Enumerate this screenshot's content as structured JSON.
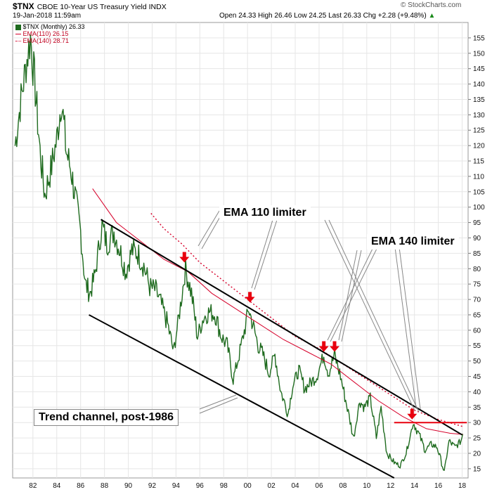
{
  "header": {
    "symbol": "$TNX",
    "description": "CBOE 10-Year US Treasury Yield INDX",
    "datetime": "19-Jan-2018 11:59am",
    "quote": "Open 24.33   High 26.46   Low 24.25   Last 26.33   Chg +2.28 (+9.48%)",
    "quote_arrow": "▲",
    "watermark": "© StockCharts.com"
  },
  "legend": {
    "price": "$TNX (Monthly) 26.33",
    "ema110": "EMA(110) 26.15",
    "ema140": "EMA(140) 28.71"
  },
  "annotations": {
    "ema110_limiter": "EMA 110 limiter",
    "ema140_limiter": "EMA 140 limiter",
    "trend_channel": "Trend channel, post-1986"
  },
  "colors": {
    "price": "#1f6b1f",
    "ema110": "#d6002a",
    "ema140": "#d6002a",
    "arrow": "#e8000e",
    "trendline": "#000000",
    "resistance": "#e8000e"
  },
  "chart_data": {
    "type": "line",
    "x_ticks": [
      {
        "year": 1982,
        "label": "82"
      },
      {
        "year": 1984,
        "label": "84"
      },
      {
        "year": 1986,
        "label": "86"
      },
      {
        "year": 1988,
        "label": "88"
      },
      {
        "year": 1990,
        "label": "90"
      },
      {
        "year": 1992,
        "label": "92"
      },
      {
        "year": 1994,
        "label": "94"
      },
      {
        "year": 1996,
        "label": "96"
      },
      {
        "year": 1998,
        "label": "98"
      },
      {
        "year": 2000,
        "label": "00"
      },
      {
        "year": 2002,
        "label": "02"
      },
      {
        "year": 2004,
        "label": "04"
      },
      {
        "year": 2006,
        "label": "06"
      },
      {
        "year": 2008,
        "label": "08"
      },
      {
        "year": 2010,
        "label": "10"
      },
      {
        "year": 2012,
        "label": "12"
      },
      {
        "year": 2014,
        "label": "14"
      },
      {
        "year": 2016,
        "label": "16"
      },
      {
        "year": 2018,
        "label": "18"
      }
    ],
    "y_ticks": [
      15,
      20,
      25,
      30,
      35,
      40,
      45,
      50,
      55,
      60,
      65,
      70,
      75,
      80,
      85,
      90,
      95,
      100,
      105,
      110,
      115,
      120,
      125,
      130,
      135,
      140,
      145,
      150,
      155
    ],
    "xlim": [
      1980.3,
      2018.5
    ],
    "ylim": [
      12,
      160
    ],
    "grid": true,
    "series": [
      {
        "name": "$TNX (Monthly) 26.33",
        "points": [
          [
            1980.5,
            120
          ],
          [
            1981.0,
            135
          ],
          [
            1981.5,
            148
          ],
          [
            1981.8,
            155
          ],
          [
            1982.2,
            138
          ],
          [
            1982.6,
            118
          ],
          [
            1983.0,
            104
          ],
          [
            1983.5,
            112
          ],
          [
            1984.0,
            122
          ],
          [
            1984.4,
            135
          ],
          [
            1984.8,
            118
          ],
          [
            1985.2,
            112
          ],
          [
            1985.6,
            102
          ],
          [
            1986.0,
            92
          ],
          [
            1986.4,
            75
          ],
          [
            1986.8,
            72
          ],
          [
            1987.2,
            78
          ],
          [
            1987.8,
            94
          ],
          [
            1988.2,
            88
          ],
          [
            1988.8,
            92
          ],
          [
            1989.3,
            86
          ],
          [
            1989.8,
            79
          ],
          [
            1990.3,
            86
          ],
          [
            1990.8,
            85
          ],
          [
            1991.3,
            81
          ],
          [
            1991.8,
            74
          ],
          [
            1992.3,
            73
          ],
          [
            1992.8,
            68
          ],
          [
            1993.3,
            62
          ],
          [
            1993.8,
            53
          ],
          [
            1994.3,
            66
          ],
          [
            1994.8,
            80
          ],
          [
            1995.3,
            72
          ],
          [
            1995.8,
            58
          ],
          [
            1996.3,
            64
          ],
          [
            1996.8,
            66
          ],
          [
            1997.3,
            65
          ],
          [
            1997.8,
            58
          ],
          [
            1998.3,
            55
          ],
          [
            1998.8,
            44
          ],
          [
            1999.3,
            52
          ],
          [
            1999.8,
            61
          ],
          [
            2000.1,
            67
          ],
          [
            2000.5,
            61
          ],
          [
            2000.9,
            55
          ],
          [
            2001.3,
            52
          ],
          [
            2001.8,
            46
          ],
          [
            2002.3,
            52
          ],
          [
            2002.8,
            40
          ],
          [
            2003.4,
            33
          ],
          [
            2003.8,
            42
          ],
          [
            2004.3,
            47
          ],
          [
            2004.8,
            41
          ],
          [
            2005.3,
            43
          ],
          [
            2005.8,
            45
          ],
          [
            2006.4,
            52
          ],
          [
            2006.8,
            46
          ],
          [
            2007.3,
            52
          ],
          [
            2007.8,
            45
          ],
          [
            2008.3,
            36
          ],
          [
            2008.9,
            25
          ],
          [
            2009.4,
            37
          ],
          [
            2009.8,
            35
          ],
          [
            2010.3,
            38
          ],
          [
            2010.8,
            25
          ],
          [
            2011.2,
            35
          ],
          [
            2011.7,
            20
          ],
          [
            2012.3,
            17
          ],
          [
            2012.8,
            16
          ],
          [
            2013.3,
            20
          ],
          [
            2013.9,
            30
          ],
          [
            2014.4,
            26
          ],
          [
            2014.9,
            21
          ],
          [
            2015.4,
            23
          ],
          [
            2015.9,
            22
          ],
          [
            2016.5,
            14
          ],
          [
            2016.9,
            24
          ],
          [
            2017.4,
            22
          ],
          [
            2017.9,
            24
          ],
          [
            2018.05,
            26.33
          ]
        ]
      },
      {
        "name": "EMA(110) 26.15",
        "points": [
          [
            1987.0,
            106
          ],
          [
            1989.0,
            95
          ],
          [
            1991.0,
            89
          ],
          [
            1993.0,
            83
          ],
          [
            1995.0,
            79
          ],
          [
            1997.0,
            72
          ],
          [
            1999.0,
            67
          ],
          [
            2001.0,
            62
          ],
          [
            2003.0,
            57
          ],
          [
            2005.0,
            53
          ],
          [
            2007.0,
            49
          ],
          [
            2009.0,
            43
          ],
          [
            2011.0,
            37
          ],
          [
            2013.0,
            32
          ],
          [
            2015.0,
            28
          ],
          [
            2017.0,
            26.5
          ],
          [
            2018.05,
            26.15
          ]
        ]
      },
      {
        "name": "EMA(140) 28.71",
        "points": [
          [
            1991.9,
            98
          ],
          [
            1993.0,
            93
          ],
          [
            1994.5,
            88
          ],
          [
            1996.0,
            82
          ],
          [
            1998.0,
            76
          ],
          [
            2000.0,
            70
          ],
          [
            2002.0,
            64
          ],
          [
            2004.0,
            58
          ],
          [
            2006.0,
            54
          ],
          [
            2008.0,
            49
          ],
          [
            2010.0,
            44
          ],
          [
            2012.0,
            39
          ],
          [
            2014.0,
            34
          ],
          [
            2016.0,
            31
          ],
          [
            2018.05,
            28.71
          ]
        ]
      }
    ],
    "trend_channel": {
      "upper": [
        [
          1987.7,
          96
        ],
        [
          2018.0,
          26
        ]
      ],
      "lower": [
        [
          1986.7,
          65
        ],
        [
          2012.3,
          12
        ]
      ]
    },
    "resistance_line": {
      "y": 30,
      "x": [
        2012.3,
        2018.4
      ]
    },
    "limiter_arrows": [
      {
        "x": 1994.7,
        "y": 82
      },
      {
        "x": 2000.2,
        "y": 69
      },
      {
        "x": 2006.4,
        "y": 53
      },
      {
        "x": 2007.3,
        "y": 53
      },
      {
        "x": 2013.8,
        "y": 31
      }
    ]
  }
}
